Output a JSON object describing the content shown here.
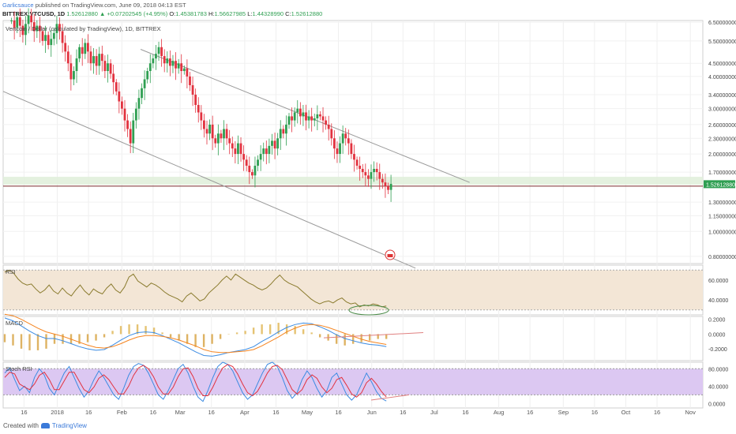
{
  "header": {
    "author": "Garlicsauce",
    "published_text": "published on TradingView.com, June 09, 2018 04:13 EST",
    "symbol": "BITTREX:VTCUSD, 1D",
    "last": "1.52612880",
    "change": "▲ +0.07202545 (+4.95%)",
    "ohlc": {
      "o_label": "O:",
      "o": "1.45381783",
      "h_label": "H:",
      "h": "1.56627985",
      "l_label": "L:",
      "l": "1.44328990",
      "c_label": "C:",
      "c": "1.52612880"
    }
  },
  "chart_data": [
    {
      "type": "candlestick",
      "title": "Vertcoin / Dollar (calculated by TradingView), 1D, BITTREX",
      "scale": "log",
      "y_ticks": [
        "6.50000000",
        "5.50000000",
        "4.50000000",
        "4.00000000",
        "3.40000000",
        "3.00000000",
        "2.60000000",
        "2.30000000",
        "2.00000000",
        "1.70000000",
        "1.30000000",
        "1.15000000",
        "1.00000000",
        "0.80000000"
      ],
      "last_price_label": "1.52612880",
      "x_ticks": [
        "16",
        "2018",
        "16",
        "Feb",
        "16",
        "Mar",
        "16",
        "Apr",
        "16",
        "May",
        "16",
        "Jun",
        "16",
        "Jul",
        "16",
        "Aug",
        "16",
        "Sep",
        "16",
        "Oct",
        "16",
        "Nov"
      ],
      "trend": {
        "start": "2017-12-10",
        "closes": [
          6.6,
          6.2,
          6.8,
          6.3,
          5.8,
          6.4,
          6.9,
          6.5,
          6.0,
          6.3,
          6.0,
          5.5,
          5.8,
          5.3,
          5.6,
          5.9,
          6.4,
          6.0,
          5.4,
          5.0,
          4.5,
          3.9,
          4.2,
          4.7,
          5.2,
          4.9,
          5.4,
          5.0,
          4.5,
          4.8,
          4.4,
          4.9,
          4.6,
          4.2,
          4.5,
          4.1,
          3.8,
          3.5,
          3.2,
          3.0,
          2.7,
          2.5,
          2.2,
          2.7,
          3.0,
          3.3,
          3.6,
          3.9,
          4.2,
          4.5,
          4.7,
          4.9,
          5.2,
          4.8,
          4.5,
          4.7,
          4.4,
          4.6,
          4.3,
          4.5,
          4.2,
          4.3,
          4.0,
          3.7,
          3.4,
          3.1,
          2.9,
          2.7,
          2.5,
          2.4,
          2.6,
          2.3,
          2.2,
          2.4,
          2.3,
          2.5,
          2.3,
          2.2,
          2.1,
          2.0,
          2.2,
          2.0,
          1.9,
          1.8,
          1.7,
          1.65,
          1.8,
          1.9,
          2.0,
          2.1,
          2.0,
          2.15,
          2.25,
          2.1,
          2.3,
          2.5,
          2.4,
          2.6,
          2.8,
          2.7,
          2.9,
          3.0,
          2.8,
          2.9,
          2.7,
          2.8,
          2.7,
          2.75,
          2.85,
          2.8,
          2.7,
          2.6,
          2.5,
          2.3,
          2.1,
          2.0,
          2.2,
          2.4,
          2.3,
          2.2,
          2.0,
          1.9,
          1.8,
          1.75,
          1.7,
          1.65,
          1.6,
          1.7,
          1.75,
          1.7,
          1.6,
          1.55,
          1.5,
          1.45,
          1.53
        ]
      },
      "annotations": {
        "channel_upper": [
          [
            "2018-02-10",
            5.1
          ],
          [
            "2018-07-18",
            1.55
          ]
        ],
        "channel_lower": [
          [
            "2017-12-06",
            3.5
          ],
          [
            "2018-06-22",
            0.72
          ]
        ],
        "support_zone": [
          1.52,
          1.63
        ],
        "support_line": 1.5
      }
    },
    {
      "type": "line",
      "title": "RSI",
      "y_ticks": [
        "60.0000",
        "40.0000"
      ],
      "ylim": [
        25,
        75
      ],
      "band": [
        30,
        70
      ],
      "values": [
        68,
        70,
        67,
        61,
        57,
        55,
        56,
        51,
        47,
        50,
        55,
        49,
        46,
        52,
        47,
        44,
        50,
        55,
        49,
        45,
        51,
        48,
        46,
        52,
        56,
        50,
        47,
        53,
        63,
        66,
        59,
        56,
        53,
        57,
        55,
        52,
        48,
        45,
        43,
        41,
        38,
        44,
        47,
        43,
        39,
        41,
        47,
        51,
        55,
        60,
        64,
        60,
        66,
        63,
        60,
        57,
        55,
        52,
        50,
        52,
        56,
        61,
        65,
        60,
        57,
        55,
        53,
        49,
        45,
        41,
        38,
        36,
        38,
        39,
        37,
        40,
        42,
        38,
        36,
        37,
        33,
        35,
        34,
        36,
        35,
        33,
        34
      ]
    },
    {
      "type": "macd",
      "title": "MACD",
      "y_ticks": [
        "0.2000",
        "0.0000",
        "-0.2000"
      ],
      "ylim": [
        -0.36,
        0.24
      ],
      "macd": [
        0.22,
        0.18,
        0.11,
        0.04,
        -0.02,
        -0.06,
        -0.06,
        -0.09,
        -0.13,
        -0.17,
        -0.2,
        -0.22,
        -0.21,
        -0.15,
        -0.08,
        -0.02,
        0.02,
        0.03,
        0.02,
        -0.02,
        -0.07,
        -0.12,
        -0.18,
        -0.24,
        -0.29,
        -0.3,
        -0.28,
        -0.25,
        -0.23,
        -0.21,
        -0.17,
        -0.1,
        -0.04,
        0.03,
        0.09,
        0.13,
        0.15,
        0.14,
        0.1,
        0.05,
        -0.01,
        -0.06,
        -0.09,
        -0.12,
        -0.14,
        -0.15,
        -0.17
      ],
      "signal": [
        0.27,
        0.25,
        0.2,
        0.14,
        0.08,
        0.03,
        0.0,
        -0.03,
        -0.07,
        -0.11,
        -0.15,
        -0.18,
        -0.19,
        -0.17,
        -0.13,
        -0.08,
        -0.04,
        -0.02,
        -0.02,
        -0.03,
        -0.05,
        -0.08,
        -0.12,
        -0.16,
        -0.21,
        -0.24,
        -0.25,
        -0.25,
        -0.24,
        -0.23,
        -0.21,
        -0.16,
        -0.1,
        -0.04,
        0.03,
        0.08,
        0.12,
        0.13,
        0.12,
        0.09,
        0.05,
        0.01,
        -0.03,
        -0.07,
        -0.1,
        -0.12,
        -0.14
      ],
      "trendline": [
        [
          0.82,
          -0.05
        ],
        [
          1.0,
          0.02
        ]
      ]
    },
    {
      "type": "line",
      "title": "Stoch RSI",
      "y_ticks": [
        "80.0000",
        "40.0000",
        "0.0000"
      ],
      "ylim": [
        -10,
        95
      ],
      "band": [
        20,
        80
      ],
      "k": [
        70,
        82,
        55,
        30,
        40,
        25,
        60,
        80,
        65,
        35,
        20,
        45,
        70,
        85,
        60,
        35,
        15,
        30,
        55,
        75,
        60,
        40,
        20,
        10,
        35,
        65,
        85,
        92,
        88,
        70,
        45,
        20,
        10,
        30,
        55,
        80,
        90,
        70,
        40,
        15,
        5,
        30,
        60,
        85,
        95,
        90,
        75,
        50,
        25,
        10,
        20,
        45,
        70,
        90,
        95,
        85,
        60,
        30,
        12,
        25,
        55,
        75,
        60,
        35,
        15,
        30,
        60,
        70,
        45,
        20,
        8,
        20,
        45,
        70,
        50,
        28,
        12,
        6
      ],
      "d": [
        60,
        72,
        68,
        45,
        38,
        32,
        45,
        65,
        72,
        55,
        32,
        32,
        52,
        72,
        72,
        52,
        32,
        25,
        38,
        58,
        66,
        55,
        38,
        22,
        22,
        40,
        65,
        82,
        88,
        80,
        62,
        38,
        22,
        22,
        38,
        62,
        80,
        82,
        62,
        35,
        18,
        18,
        38,
        62,
        82,
        90,
        85,
        68,
        45,
        25,
        18,
        28,
        48,
        70,
        85,
        88,
        78,
        55,
        32,
        22,
        32,
        55,
        66,
        58,
        38,
        25,
        35,
        55,
        60,
        42,
        22,
        15,
        25,
        48,
        58,
        45,
        28,
        15
      ],
      "trendline": [
        [
          0.83,
          8
        ],
        [
          1.0,
          20
        ]
      ]
    }
  ],
  "footer": {
    "created_with": "Created with",
    "brand": "TradingView"
  },
  "colors": {
    "up": "#2f9f52",
    "down": "#e2323f",
    "rsi_band": "#f3e6d6",
    "stoch_band": "#dcc8f2",
    "macd": "#3b8be2",
    "signal": "#f5841f",
    "ellipse": "#4c8c4a"
  }
}
